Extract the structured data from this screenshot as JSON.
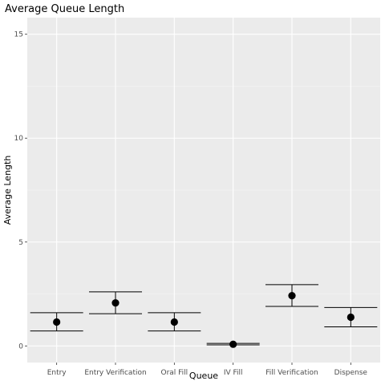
{
  "chart_data": {
    "type": "scatter",
    "title": "Average Queue Length",
    "xlabel": "Queue",
    "ylabel": "Average Length",
    "categories": [
      "Entry",
      "Entry Verification",
      "Oral Fill",
      "IV Fill",
      "Fill Verification",
      "Dispense"
    ],
    "means": [
      1.15,
      2.07,
      1.15,
      0.08,
      2.42,
      1.38
    ],
    "lower": [
      0.72,
      1.55,
      0.72,
      0.05,
      1.9,
      0.92
    ],
    "upper": [
      1.6,
      2.6,
      1.6,
      0.12,
      2.95,
      1.85
    ],
    "ylim": [
      -0.8,
      15.8
    ],
    "yticks": [
      0,
      5,
      10,
      15
    ],
    "grid": true,
    "legend": "none",
    "colors": {
      "panel": "#ebebeb",
      "grid_major": "#ffffff",
      "grid_minor": "#f5f5f5",
      "mark": "#000000"
    }
  }
}
